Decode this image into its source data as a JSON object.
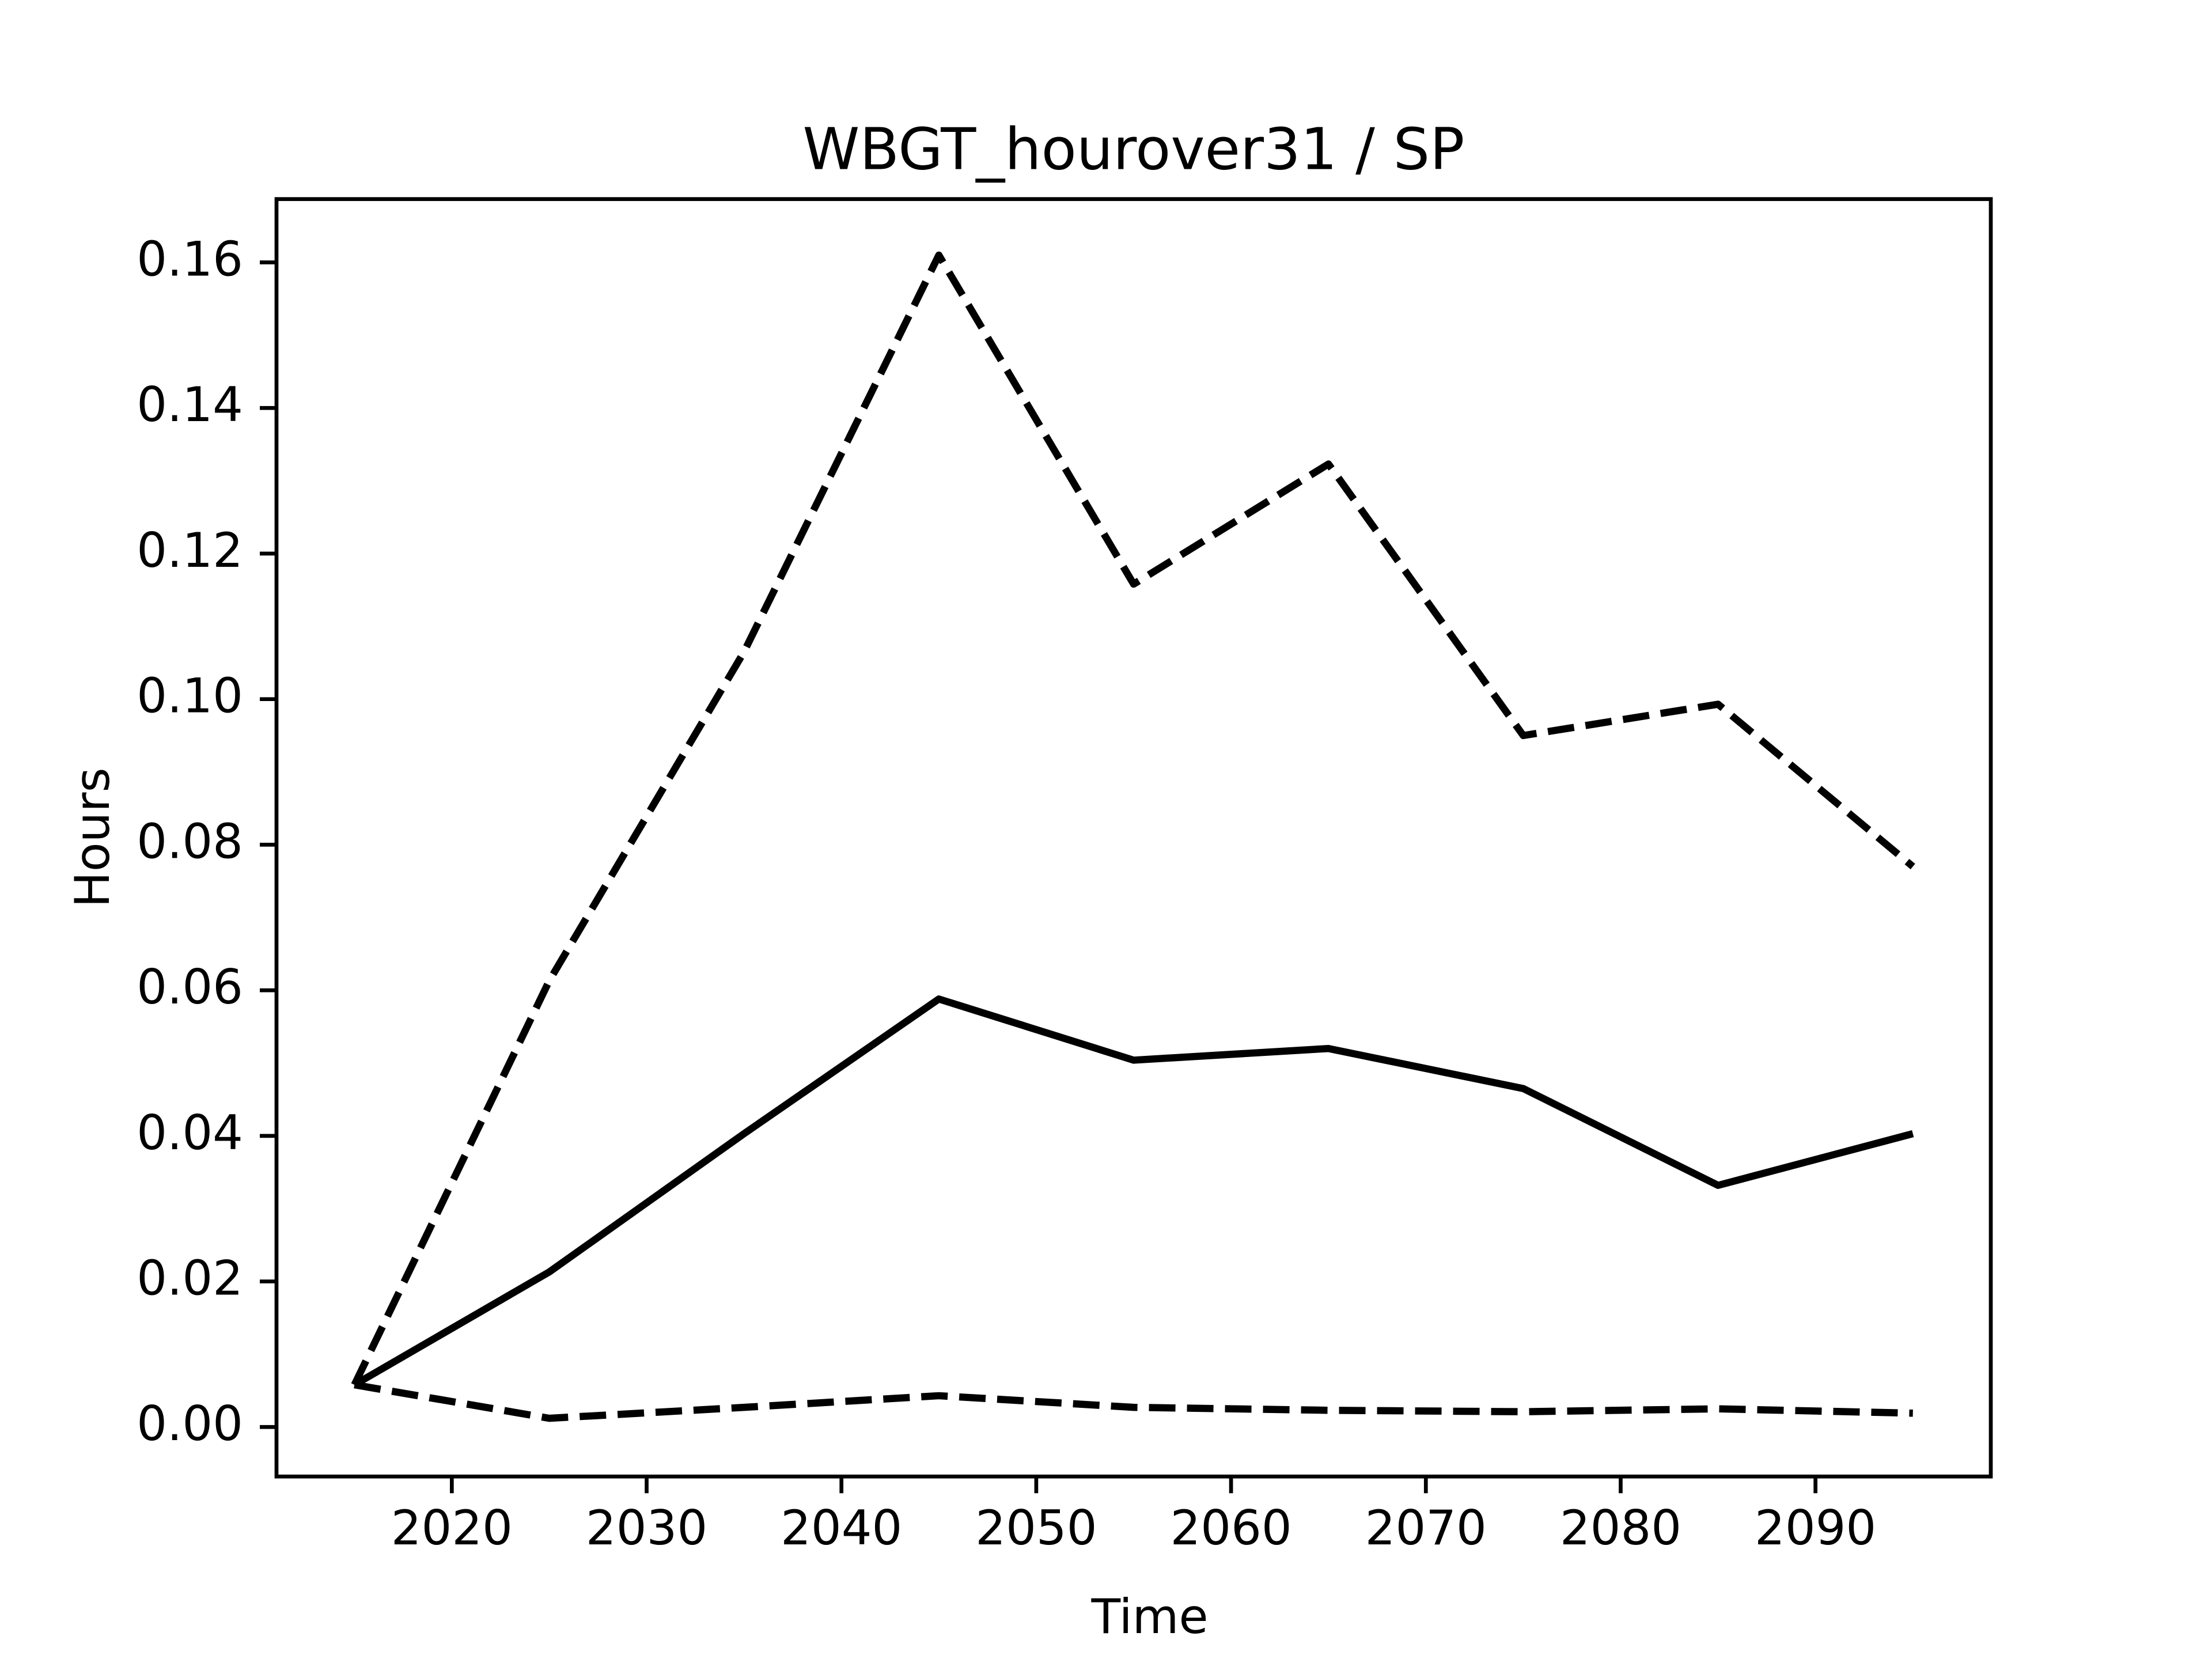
{
  "chart_data": {
    "type": "line",
    "title": "WBGT_hourover31 / SP",
    "x_label": "Time",
    "y_label": "Hours",
    "x": [
      2015,
      2025,
      2035,
      2045,
      2055,
      2065,
      2075,
      2085,
      2095
    ],
    "series": [
      {
        "color": "#000000",
        "linestyle": "solid",
        "values": [
          0.0058,
          0.0213,
          0.0403,
          0.0588,
          0.0504,
          0.052,
          0.0465,
          0.0332,
          0.0403
        ]
      },
      {
        "color": "#000000",
        "linestyle": "dashed",
        "values": [
          0.0058,
          0.0613,
          0.1065,
          0.161,
          0.1158,
          0.1323,
          0.095,
          0.0993,
          0.077
        ]
      },
      {
        "color": "#000000",
        "linestyle": "dashed",
        "values": [
          0.0058,
          0.0012,
          0.0027,
          0.0043,
          0.0027,
          0.0023,
          0.0021,
          0.0025,
          0.0019
        ]
      }
    ],
    "xlim": [
      2011,
      2099
    ],
    "ylim": [
      -0.0068,
      0.1687
    ],
    "xticks": [
      2020,
      2030,
      2040,
      2050,
      2060,
      2070,
      2080,
      2090
    ],
    "yticks": [
      {
        "value": 0,
        "label": "0.00"
      },
      {
        "value": 0.02,
        "label": "0.02"
      },
      {
        "value": 0.04,
        "label": "0.04"
      },
      {
        "value": 0.06,
        "label": "0.06"
      },
      {
        "value": 0.08,
        "label": "0.08"
      },
      {
        "value": 0.1,
        "label": "0.10"
      },
      {
        "value": 0.12,
        "label": "0.12"
      },
      {
        "value": 0.14,
        "label": "0.14"
      },
      {
        "value": 0.16,
        "label": "0.16"
      }
    ],
    "grid": false
  }
}
